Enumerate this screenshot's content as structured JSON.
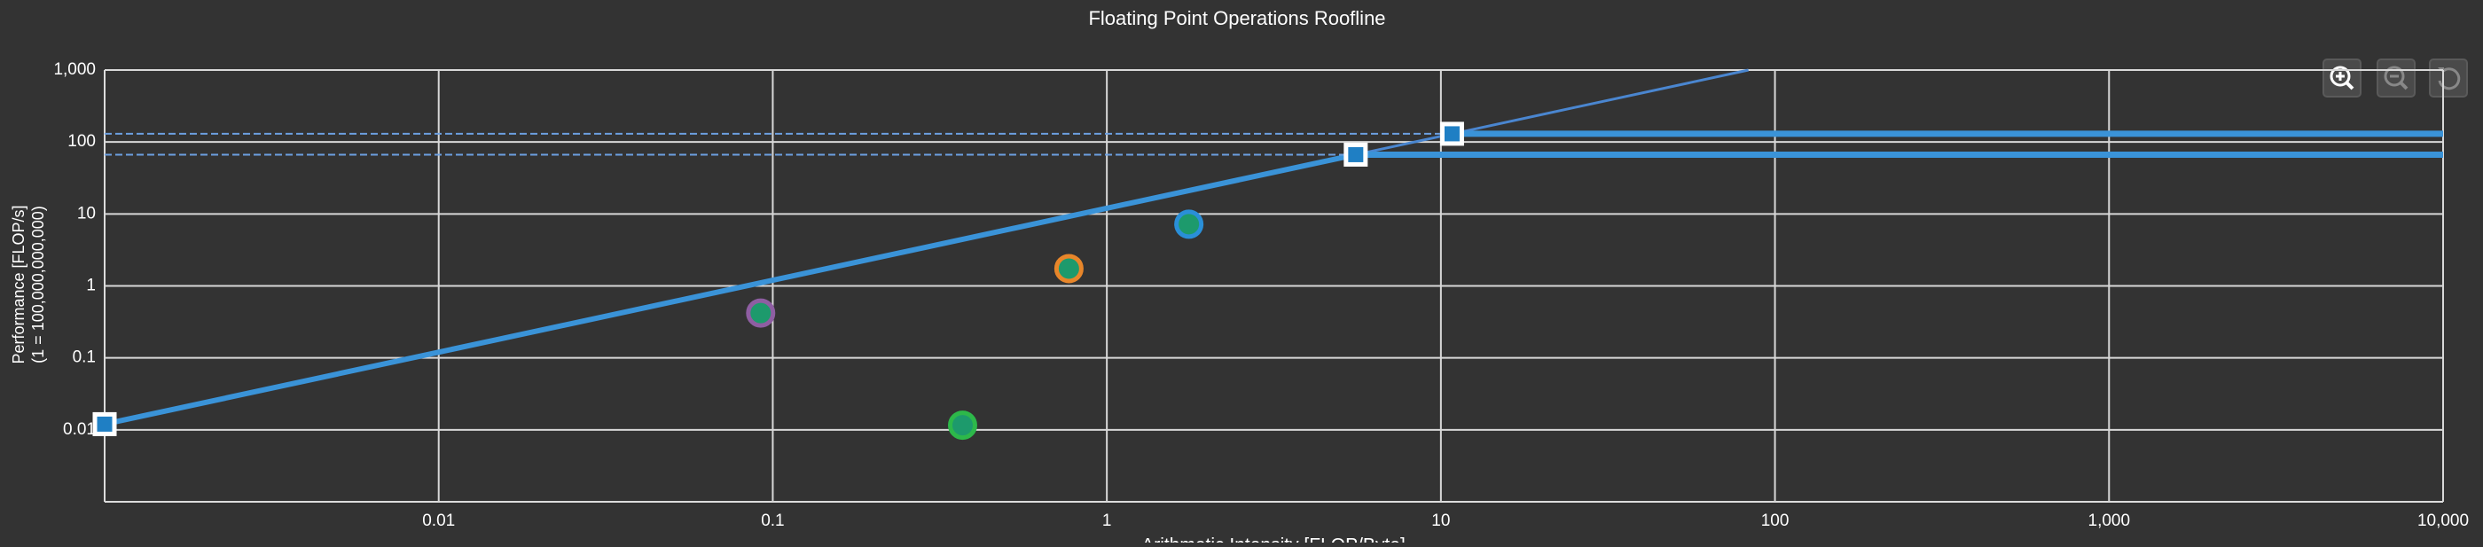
{
  "chart_data": {
    "type": "scatter",
    "title": "Floating Point Operations Roofline",
    "xlabel": "Arithmetic Intensity [FLOP/Byte]",
    "ylabel": [
      "Performance [FLOP/s]",
      "(1 = 100,000,000,000)"
    ],
    "log_x": true,
    "log_y": true,
    "grid": true,
    "xlim": [
      0.001,
      10000
    ],
    "ylim": [
      0.001,
      1000
    ],
    "xticks": [
      0.01,
      0.1,
      1,
      10,
      100,
      {
        "value": 1000,
        "label": "1,000"
      },
      {
        "value": 10000,
        "label": "10,000"
      }
    ],
    "yticks": [
      0.01,
      0.1,
      1,
      10,
      100,
      {
        "value": 1000,
        "label": "1,000"
      }
    ],
    "lines": [
      {
        "x": [
          0.001,
          5.56
        ],
        "y": [
          0.012,
          66.7
        ],
        "color": "#3a93d8",
        "width": 6,
        "dash": false
      },
      {
        "x": [
          5.56,
          83.3
        ],
        "y": [
          66.7,
          1000
        ],
        "color": "#4a86d0",
        "width": 3,
        "dash": false
      },
      {
        "x": [
          10.8,
          10000
        ],
        "y": [
          130,
          130
        ],
        "color": "#3a93d8",
        "width": 7,
        "dash": false
      },
      {
        "x": [
          5.56,
          10000
        ],
        "y": [
          66.7,
          66.7
        ],
        "color": "#3a93d8",
        "width": 7,
        "dash": false
      },
      {
        "x": [
          0.001,
          10.8
        ],
        "y": [
          130,
          130
        ],
        "color": "#6c9fe0",
        "width": 2,
        "dash": true
      },
      {
        "x": [
          0.001,
          5.56
        ],
        "y": [
          66.7,
          66.7
        ],
        "color": "#6c9fe0",
        "width": 2,
        "dash": true
      }
    ],
    "markers": {
      "x": [
        0.001,
        5.56,
        10.8
      ],
      "y": [
        0.012,
        66.7,
        130
      ],
      "color": "#1f7fc4",
      "edge_color": "#ffffff"
    },
    "points": {
      "x": [
        0.092,
        0.37,
        0.77,
        1.76
      ],
      "y": [
        0.42,
        0.0116,
        1.74,
        7.2
      ],
      "color": "#1d9a6c",
      "edge_colors": [
        "#8e5ea2",
        "#2db84a",
        "#e8862a",
        "#2a8fd8"
      ]
    }
  }
}
